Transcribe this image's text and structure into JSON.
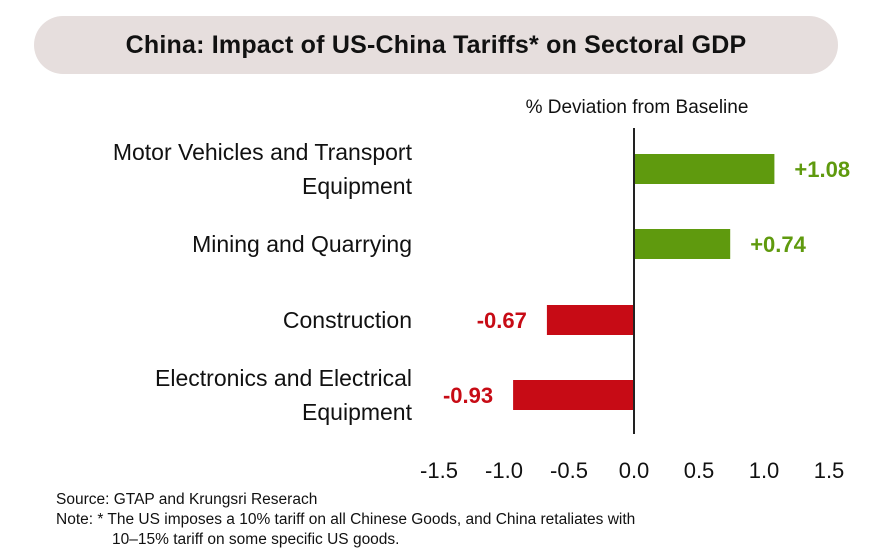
{
  "title": "China: Impact of US-China Tariffs* on Sectoral GDP",
  "colors": {
    "positive": "#5f9a0e",
    "negative": "#c70b15",
    "axis": "#222222"
  },
  "chart_data": {
    "type": "bar",
    "orientation": "horizontal",
    "title": "China: Impact of US-China Tariffs* on Sectoral GDP",
    "xlabel": "% Deviation from Baseline",
    "categories": [
      [
        "Motor Vehicles and Transport",
        "Equipment"
      ],
      [
        "Mining and Quarrying"
      ],
      [
        "Construction"
      ],
      [
        "Electronics and Electrical",
        "Equipment"
      ]
    ],
    "values": [
      1.08,
      0.74,
      -0.67,
      -0.93
    ],
    "data_labels": [
      "+1.08",
      "+0.74",
      "-0.67",
      "-0.93"
    ],
    "xlim": [
      -1.5,
      1.5
    ],
    "xticks": [
      -1.5,
      -1.0,
      -0.5,
      0.0,
      0.5,
      1.0,
      1.5
    ],
    "xtick_labels": [
      "-1.5",
      "-1.0",
      "-0.5",
      "0.0",
      "0.5",
      "1.0",
      "1.5"
    ],
    "grid": false,
    "legend": "none"
  },
  "footer": {
    "source": "Source: GTAP and Krungsri Reserach",
    "note_line1": "Note: * The US imposes a 10% tariff on all Chinese Goods, and China retaliates with",
    "note_line2": "10–15% tariff on some specific US goods."
  }
}
